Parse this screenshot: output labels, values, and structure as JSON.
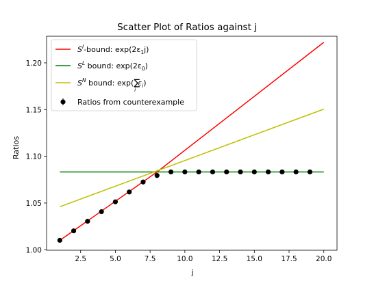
{
  "chart_data": {
    "type": "scatter",
    "title": "Scatter Plot of Ratios against j",
    "xlabel": "j",
    "ylabel": "Ratios",
    "xlim": [
      0.05,
      20.95
    ],
    "ylim": [
      0.9995,
      1.2285
    ],
    "xticks": [
      2.5,
      5.0,
      7.5,
      10.0,
      12.5,
      15.0,
      17.5,
      20.0
    ],
    "xtick_labels": [
      "2.5",
      "5.0",
      "7.5",
      "10.0",
      "12.5",
      "15.0",
      "17.5",
      "20.0"
    ],
    "yticks": [
      1.0,
      1.05,
      1.1,
      1.15,
      1.2
    ],
    "ytick_labels": [
      "1.00",
      "1.05",
      "1.10",
      "1.15",
      "1.20"
    ],
    "grid": false,
    "legend_position": "top-left",
    "series": [
      {
        "kind": "line",
        "color": "#ff0000",
        "legend": {
          "main": "S",
          "sup": "I",
          "after": "-bound: exp(2ε",
          "sub": "1",
          "tail": "j)"
        },
        "x": [
          1,
          8,
          20
        ],
        "y": [
          1.01,
          1.0833,
          1.222
        ]
      },
      {
        "kind": "line",
        "color": "#008000",
        "legend": {
          "main": "S",
          "sup": "L",
          "after": " bound: exp(2ε",
          "sub": "0",
          "tail": ")"
        },
        "x": [
          1,
          20
        ],
        "y": [
          1.0833,
          1.0833
        ]
      },
      {
        "kind": "line",
        "color": "#bfbf00",
        "legend": {
          "main": "S",
          "sup": "N",
          "after": " bound: exp(",
          "sum": "∑",
          "sum_sub": "i",
          "eps": "ε",
          "sub": "i",
          "tail": ")"
        },
        "x": [
          1,
          20
        ],
        "y": [
          1.046,
          1.1505
        ]
      },
      {
        "kind": "points",
        "color": "#000000",
        "legend": {
          "text": "Ratios from counterexample"
        },
        "x": [
          1,
          2,
          3,
          4,
          5,
          6,
          7,
          8,
          9,
          10,
          11,
          12,
          13,
          14,
          15,
          16,
          17,
          18,
          19
        ],
        "y": [
          1.0101,
          1.0202,
          1.0305,
          1.0408,
          1.0513,
          1.0618,
          1.0725,
          1.0795,
          1.0833,
          1.0833,
          1.0833,
          1.0833,
          1.0833,
          1.0833,
          1.0833,
          1.0833,
          1.0833,
          1.0833,
          1.0833
        ]
      }
    ]
  }
}
